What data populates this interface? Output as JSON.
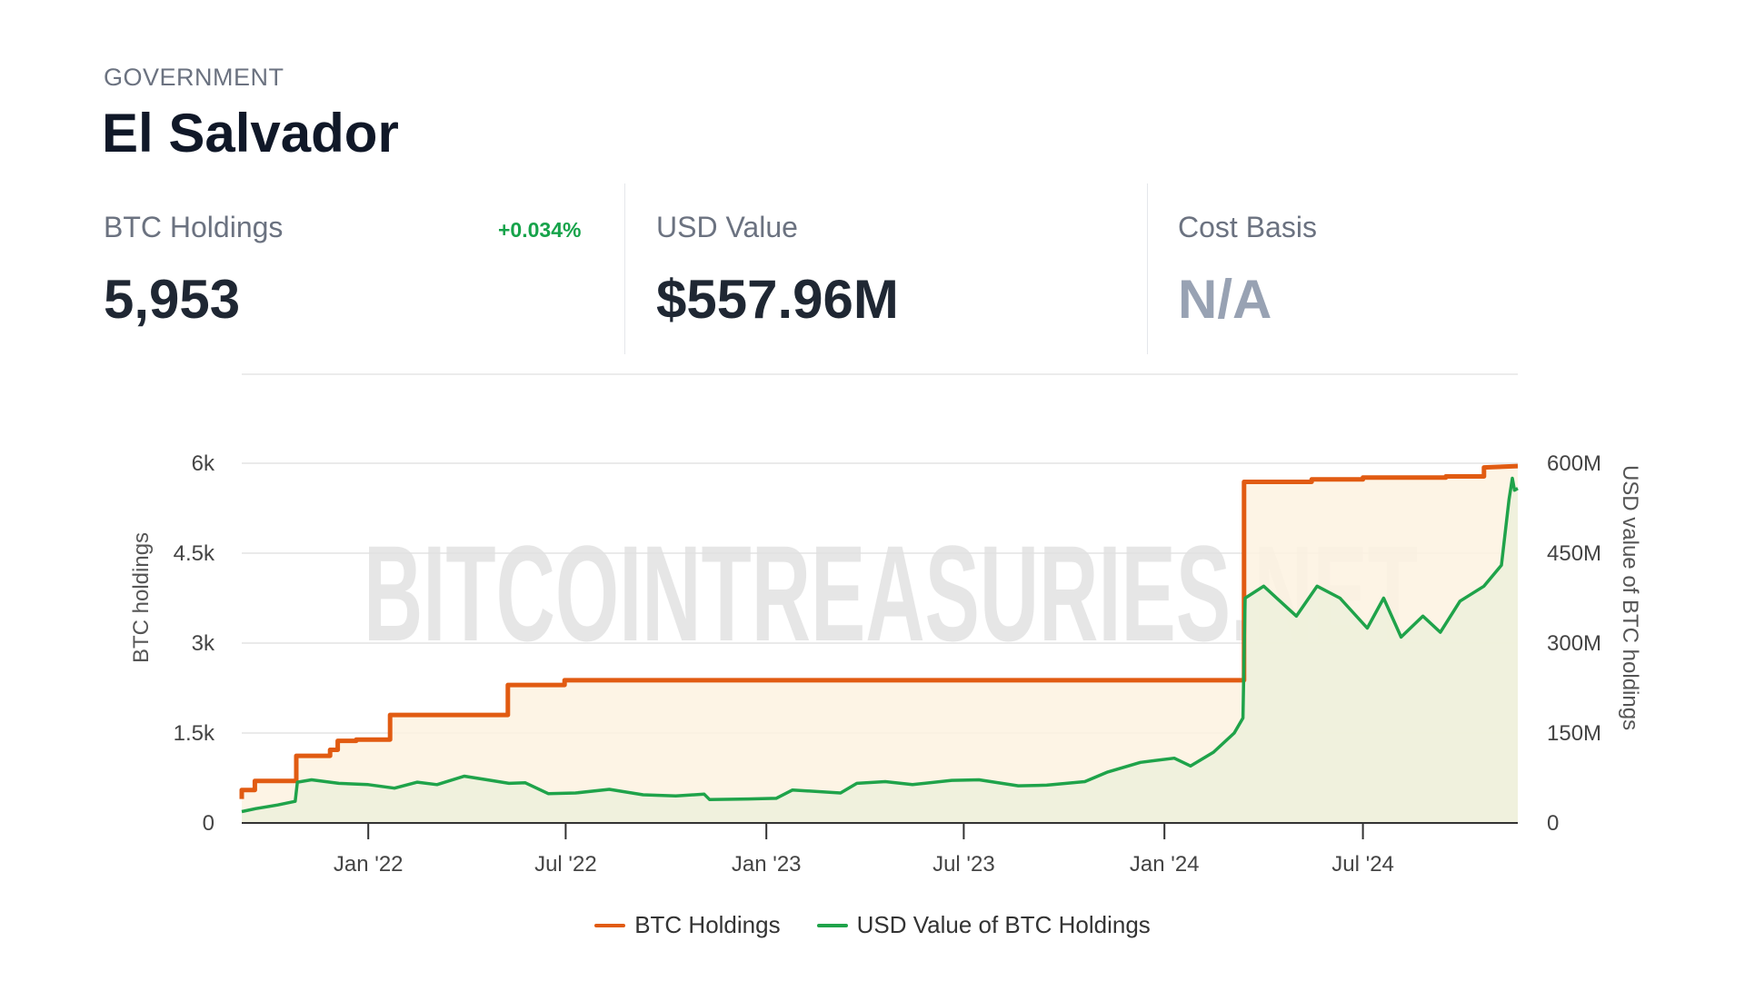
{
  "header": {
    "category": "GOVERNMENT",
    "title": "El Salvador"
  },
  "stats": [
    {
      "label": "BTC Holdings",
      "value": "5,953",
      "change": "+0.034%"
    },
    {
      "label": "USD Value",
      "value": "$557.96M"
    },
    {
      "label": "Cost Basis",
      "value": "N/A"
    }
  ],
  "watermark": "BITCOINTREASURIES.NET",
  "colors": {
    "btc": "#e15b12",
    "usd": "#1fa34a",
    "btc_fill": "#fdf2e0",
    "usd_fill": "#eef1dc"
  },
  "chart_data": {
    "type": "line",
    "xlabel": "",
    "ylabel": "BTC holdings",
    "ylabel_right": "USD value of BTC holdings",
    "x_ticks": [
      "Jan '22",
      "Jul '22",
      "Jan '23",
      "Jul '23",
      "Jan '24",
      "Jul '24"
    ],
    "y_ticks_left": [
      "0",
      "1.5k",
      "3k",
      "4.5k",
      "6k"
    ],
    "y_ticks_right": [
      "0",
      "150M",
      "300M",
      "450M",
      "600M"
    ],
    "ylim_left": [
      0,
      6000
    ],
    "ylim_right": [
      0,
      600000000
    ],
    "xlim": [
      "2021-09-07",
      "2024-11-20"
    ],
    "grid": true,
    "legend_position": "bottom-center",
    "series": [
      {
        "name": "BTC Holdings",
        "axis": "left",
        "points": [
          [
            "2021-09-07",
            400
          ],
          [
            "2021-09-07",
            550
          ],
          [
            "2021-09-19",
            550
          ],
          [
            "2021-09-19",
            700
          ],
          [
            "2021-10-27",
            700
          ],
          [
            "2021-10-27",
            1120
          ],
          [
            "2021-11-27",
            1120
          ],
          [
            "2021-11-27",
            1220
          ],
          [
            "2021-12-04",
            1220
          ],
          [
            "2021-12-04",
            1370
          ],
          [
            "2021-12-21",
            1370
          ],
          [
            "2021-12-21",
            1391
          ],
          [
            "2022-01-21",
            1391
          ],
          [
            "2022-01-21",
            1801
          ],
          [
            "2022-05-09",
            1801
          ],
          [
            "2022-05-09",
            2301
          ],
          [
            "2022-06-30",
            2301
          ],
          [
            "2022-06-30",
            2381
          ],
          [
            "2024-03-14",
            2381
          ],
          [
            "2024-03-14",
            5690
          ],
          [
            "2024-05-15",
            5690
          ],
          [
            "2024-05-15",
            5730
          ],
          [
            "2024-07-01",
            5730
          ],
          [
            "2024-07-01",
            5760
          ],
          [
            "2024-09-15",
            5760
          ],
          [
            "2024-09-15",
            5780
          ],
          [
            "2024-10-20",
            5780
          ],
          [
            "2024-10-20",
            5930
          ],
          [
            "2024-11-20",
            5953
          ]
        ]
      },
      {
        "name": "USD Value of BTC Holdings",
        "axis": "right",
        "points": [
          [
            "2021-09-07",
            19000000
          ],
          [
            "2021-09-20",
            24000000
          ],
          [
            "2021-10-10",
            30000000
          ],
          [
            "2021-10-26",
            36000000
          ],
          [
            "2021-10-28",
            68000000
          ],
          [
            "2021-11-10",
            72000000
          ],
          [
            "2021-12-05",
            66000000
          ],
          [
            "2022-01-01",
            64000000
          ],
          [
            "2022-01-25",
            58000000
          ],
          [
            "2022-02-15",
            68000000
          ],
          [
            "2022-03-05",
            64000000
          ],
          [
            "2022-03-30",
            78000000
          ],
          [
            "2022-04-20",
            72000000
          ],
          [
            "2022-05-10",
            66000000
          ],
          [
            "2022-05-25",
            67000000
          ],
          [
            "2022-06-15",
            49000000
          ],
          [
            "2022-07-10",
            50000000
          ],
          [
            "2022-08-10",
            56000000
          ],
          [
            "2022-09-10",
            47000000
          ],
          [
            "2022-10-10",
            45000000
          ],
          [
            "2022-11-05",
            48000000
          ],
          [
            "2022-11-10",
            39000000
          ],
          [
            "2022-12-15",
            40000000
          ],
          [
            "2023-01-10",
            41000000
          ],
          [
            "2023-01-25",
            55000000
          ],
          [
            "2023-03-10",
            50000000
          ],
          [
            "2023-03-25",
            66000000
          ],
          [
            "2023-04-20",
            69000000
          ],
          [
            "2023-05-15",
            64000000
          ],
          [
            "2023-06-20",
            71000000
          ],
          [
            "2023-07-15",
            72000000
          ],
          [
            "2023-08-20",
            62000000
          ],
          [
            "2023-09-15",
            63000000
          ],
          [
            "2023-10-20",
            69000000
          ],
          [
            "2023-11-10",
            85000000
          ],
          [
            "2023-12-10",
            101000000
          ],
          [
            "2024-01-10",
            108000000
          ],
          [
            "2024-01-25",
            95000000
          ],
          [
            "2024-02-15",
            118000000
          ],
          [
            "2024-03-05",
            150000000
          ],
          [
            "2024-03-13",
            175000000
          ],
          [
            "2024-03-15",
            375000000
          ],
          [
            "2024-04-01",
            395000000
          ],
          [
            "2024-05-01",
            345000000
          ],
          [
            "2024-05-20",
            395000000
          ],
          [
            "2024-06-10",
            375000000
          ],
          [
            "2024-07-05",
            325000000
          ],
          [
            "2024-07-20",
            375000000
          ],
          [
            "2024-08-05",
            310000000
          ],
          [
            "2024-08-25",
            345000000
          ],
          [
            "2024-09-10",
            318000000
          ],
          [
            "2024-09-28",
            370000000
          ],
          [
            "2024-10-20",
            395000000
          ],
          [
            "2024-11-05",
            430000000
          ],
          [
            "2024-11-12",
            540000000
          ],
          [
            "2024-11-15",
            575000000
          ],
          [
            "2024-11-17",
            555000000
          ],
          [
            "2024-11-20",
            557960000
          ]
        ]
      }
    ]
  }
}
